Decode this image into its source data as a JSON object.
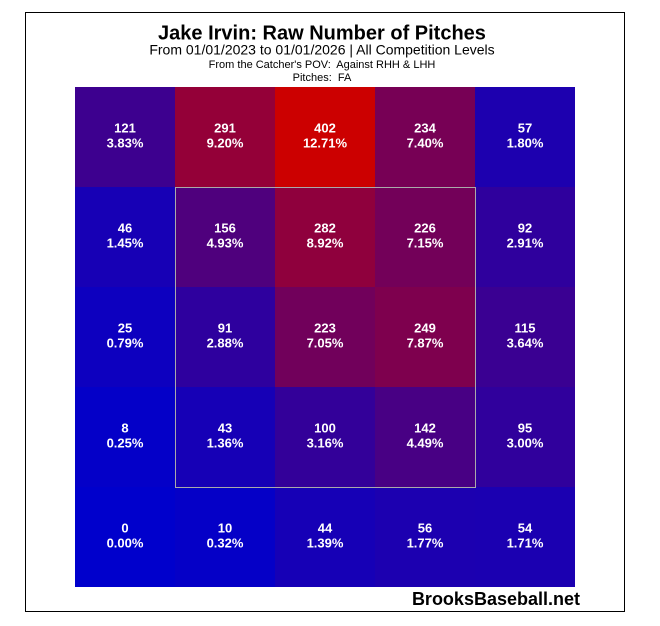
{
  "chart_data": {
    "type": "heatmap",
    "title": "Jake Irvin: Raw Number of Pitches",
    "subtitle": "From 01/01/2023 to 01/01/2026 | All Competition Levels",
    "notes": [
      "From the Catcher's POV:  Against RHH & LHH",
      "Pitches:  FA"
    ],
    "watermark": "BrooksBaseball.net",
    "low_color": "#0000cc",
    "high_color": "#cc0000",
    "values": [
      [
        121,
        291,
        402,
        234,
        57
      ],
      [
        46,
        156,
        282,
        226,
        92
      ],
      [
        25,
        91,
        223,
        249,
        115
      ],
      [
        8,
        43,
        100,
        142,
        95
      ],
      [
        0,
        10,
        44,
        56,
        54
      ]
    ],
    "shares": [
      [
        3.83,
        9.2,
        12.71,
        7.4,
        1.8
      ],
      [
        1.45,
        4.93,
        8.92,
        7.15,
        2.91
      ],
      [
        0.79,
        2.88,
        7.05,
        7.87,
        3.64
      ],
      [
        0.25,
        1.36,
        3.16,
        4.49,
        3.0
      ],
      [
        0.0,
        0.32,
        1.39,
        1.77,
        1.71
      ]
    ],
    "share_labels": [
      [
        "3.83%",
        "9.20%",
        "12.71%",
        "7.40%",
        "1.80%"
      ],
      [
        "1.45%",
        "4.93%",
        "8.92%",
        "7.15%",
        "2.91%"
      ],
      [
        "0.79%",
        "2.88%",
        "7.05%",
        "7.87%",
        "3.64%"
      ],
      [
        "0.25%",
        "1.36%",
        "3.16%",
        "4.49%",
        "3.00%"
      ],
      [
        "0.00%",
        "0.32%",
        "1.39%",
        "1.77%",
        "1.71%"
      ]
    ]
  }
}
